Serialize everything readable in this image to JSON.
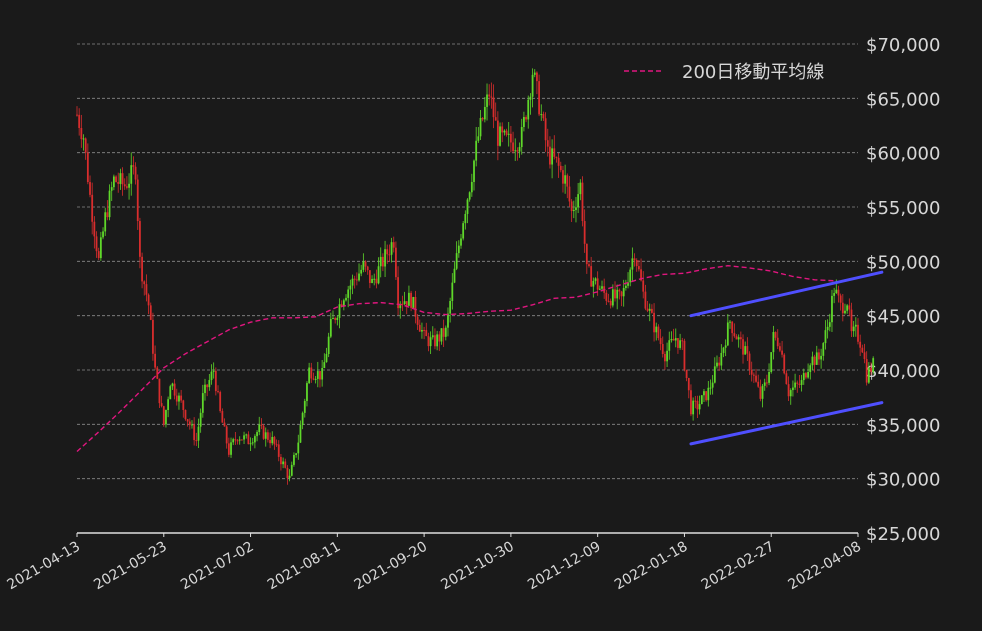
{
  "chart_data": {
    "type": "candlestick",
    "x_start": "2021-04-13",
    "x_end": "2022-04-08",
    "x_ticks": [
      "2021-04-13",
      "2021-05-23",
      "2021-07-02",
      "2021-08-11",
      "2021-09-20",
      "2021-10-30",
      "2021-12-09",
      "2022-01-18",
      "2022-02-27",
      "2022-04-08"
    ],
    "y_ticks": [
      "$25,000",
      "$30,000",
      "$35,000",
      "$40,000",
      "$45,000",
      "$50,000",
      "$55,000",
      "$60,000",
      "$65,000",
      "$70,000"
    ],
    "ylim": [
      25000,
      70000
    ],
    "grid": "horizontal-dashed",
    "legend": {
      "placement": "top-right",
      "entries": [
        {
          "label": "200日移動平均線",
          "color": "#e0167f",
          "style": "dashed"
        }
      ]
    },
    "colors": {
      "up": "#5fd82a",
      "down": "#d92d2d",
      "ma": "#e0167f",
      "channel": "#4f4fff",
      "background": "#1a1a1a"
    },
    "close_anchors": [
      [
        "2021-04-13",
        63500
      ],
      [
        "2021-04-16",
        61500
      ],
      [
        "2021-04-19",
        56000
      ],
      [
        "2021-04-23",
        50000
      ],
      [
        "2021-04-26",
        54000
      ],
      [
        "2021-04-30",
        57500
      ],
      [
        "2021-05-05",
        57000
      ],
      [
        "2021-05-10",
        58500
      ],
      [
        "2021-05-12",
        50000
      ],
      [
        "2021-05-16",
        46000
      ],
      [
        "2021-05-19",
        40000
      ],
      [
        "2021-05-23",
        35000
      ],
      [
        "2021-05-26",
        39000
      ],
      [
        "2021-06-01",
        36500
      ],
      [
        "2021-06-07",
        33500
      ],
      [
        "2021-06-10",
        37500
      ],
      [
        "2021-06-15",
        40000
      ],
      [
        "2021-06-18",
        36000
      ],
      [
        "2021-06-22",
        32500
      ],
      [
        "2021-06-26",
        34000
      ],
      [
        "2021-07-01",
        33500
      ],
      [
        "2021-07-06",
        34500
      ],
      [
        "2021-07-12",
        33500
      ],
      [
        "2021-07-20",
        30000
      ],
      [
        "2021-07-24",
        33500
      ],
      [
        "2021-07-29",
        40000
      ],
      [
        "2021-08-04",
        39500
      ],
      [
        "2021-08-08",
        44000
      ],
      [
        "2021-08-14",
        47000
      ],
      [
        "2021-08-23",
        49500
      ],
      [
        "2021-08-27",
        48000
      ],
      [
        "2021-09-06",
        52000
      ],
      [
        "2021-09-08",
        46500
      ],
      [
        "2021-09-14",
        46500
      ],
      [
        "2021-09-20",
        43000
      ],
      [
        "2021-09-24",
        42500
      ],
      [
        "2021-09-30",
        43500
      ],
      [
        "2021-10-04",
        49000
      ],
      [
        "2021-10-08",
        54000
      ],
      [
        "2021-10-11",
        57000
      ],
      [
        "2021-10-15",
        61500
      ],
      [
        "2021-10-20",
        65500
      ],
      [
        "2021-10-24",
        61500
      ],
      [
        "2021-10-28",
        61000
      ],
      [
        "2021-11-01",
        61000
      ],
      [
        "2021-11-04",
        61500
      ],
      [
        "2021-11-09",
        67500
      ],
      [
        "2021-11-12",
        64500
      ],
      [
        "2021-11-16",
        60000
      ],
      [
        "2021-11-20",
        59000
      ],
      [
        "2021-11-24",
        57500
      ],
      [
        "2021-11-27",
        54500
      ],
      [
        "2021-12-01",
        57000
      ],
      [
        "2021-12-04",
        49000
      ],
      [
        "2021-12-10",
        47500
      ],
      [
        "2021-12-13",
        46800
      ],
      [
        "2021-12-20",
        46500
      ],
      [
        "2021-12-26",
        51000
      ],
      [
        "2021-12-30",
        47000
      ],
      [
        "2022-01-05",
        43500
      ],
      [
        "2022-01-09",
        41500
      ],
      [
        "2022-01-14",
        43000
      ],
      [
        "2022-01-17",
        42000
      ],
      [
        "2022-01-21",
        36500
      ],
      [
        "2022-01-24",
        36700
      ],
      [
        "2022-01-29",
        38000
      ],
      [
        "2022-02-04",
        41500
      ],
      [
        "2022-02-08",
        44500
      ],
      [
        "2022-02-10",
        43500
      ],
      [
        "2022-02-14",
        42000
      ],
      [
        "2022-02-17",
        40500
      ],
      [
        "2022-02-22",
        37500
      ],
      [
        "2022-02-25",
        39000
      ],
      [
        "2022-02-28",
        43000
      ],
      [
        "2022-03-03",
        42500
      ],
      [
        "2022-03-07",
        38000
      ],
      [
        "2022-03-13",
        38800
      ],
      [
        "2022-03-17",
        41000
      ],
      [
        "2022-03-21",
        41000
      ],
      [
        "2022-03-25",
        44000
      ],
      [
        "2022-03-28",
        47500
      ],
      [
        "2022-03-31",
        45800
      ],
      [
        "2022-04-03",
        46400
      ],
      [
        "2022-04-05",
        43200
      ],
      [
        "2022-04-07",
        43500
      ],
      [
        "2022-04-10",
        42200
      ],
      [
        "2022-04-12",
        39500
      ],
      [
        "2022-04-15",
        40500
      ]
    ],
    "moving_average_200d": [
      [
        "2021-04-13",
        32500
      ],
      [
        "2021-04-23",
        34300
      ],
      [
        "2021-05-03",
        36200
      ],
      [
        "2021-05-13",
        38200
      ],
      [
        "2021-05-23",
        40200
      ],
      [
        "2021-06-02",
        41500
      ],
      [
        "2021-06-12",
        42600
      ],
      [
        "2021-06-22",
        43700
      ],
      [
        "2021-07-02",
        44400
      ],
      [
        "2021-07-12",
        44800
      ],
      [
        "2021-07-22",
        44800
      ],
      [
        "2021-08-01",
        44900
      ],
      [
        "2021-08-11",
        45800
      ],
      [
        "2021-08-21",
        46100
      ],
      [
        "2021-08-31",
        46200
      ],
      [
        "2021-09-10",
        46000
      ],
      [
        "2021-09-20",
        45300
      ],
      [
        "2021-09-30",
        45100
      ],
      [
        "2021-10-10",
        45200
      ],
      [
        "2021-10-20",
        45400
      ],
      [
        "2021-10-30",
        45500
      ],
      [
        "2021-11-09",
        46000
      ],
      [
        "2021-11-19",
        46600
      ],
      [
        "2021-11-29",
        46700
      ],
      [
        "2021-12-09",
        47200
      ],
      [
        "2021-12-19",
        47800
      ],
      [
        "2021-12-29",
        48400
      ],
      [
        "2022-01-08",
        48800
      ],
      [
        "2022-01-18",
        48900
      ],
      [
        "2022-01-28",
        49300
      ],
      [
        "2022-02-07",
        49600
      ],
      [
        "2022-02-17",
        49400
      ],
      [
        "2022-02-27",
        49100
      ],
      [
        "2022-03-09",
        48600
      ],
      [
        "2022-03-19",
        48300
      ],
      [
        "2022-03-29",
        48200
      ]
    ],
    "channel_lines": [
      {
        "name": "upper",
        "from": [
          "2022-01-21",
          45000
        ],
        "to": [
          "2022-04-19",
          49000
        ]
      },
      {
        "name": "lower",
        "from": [
          "2022-01-21",
          33200
        ],
        "to": [
          "2022-04-19",
          37000
        ]
      }
    ]
  }
}
